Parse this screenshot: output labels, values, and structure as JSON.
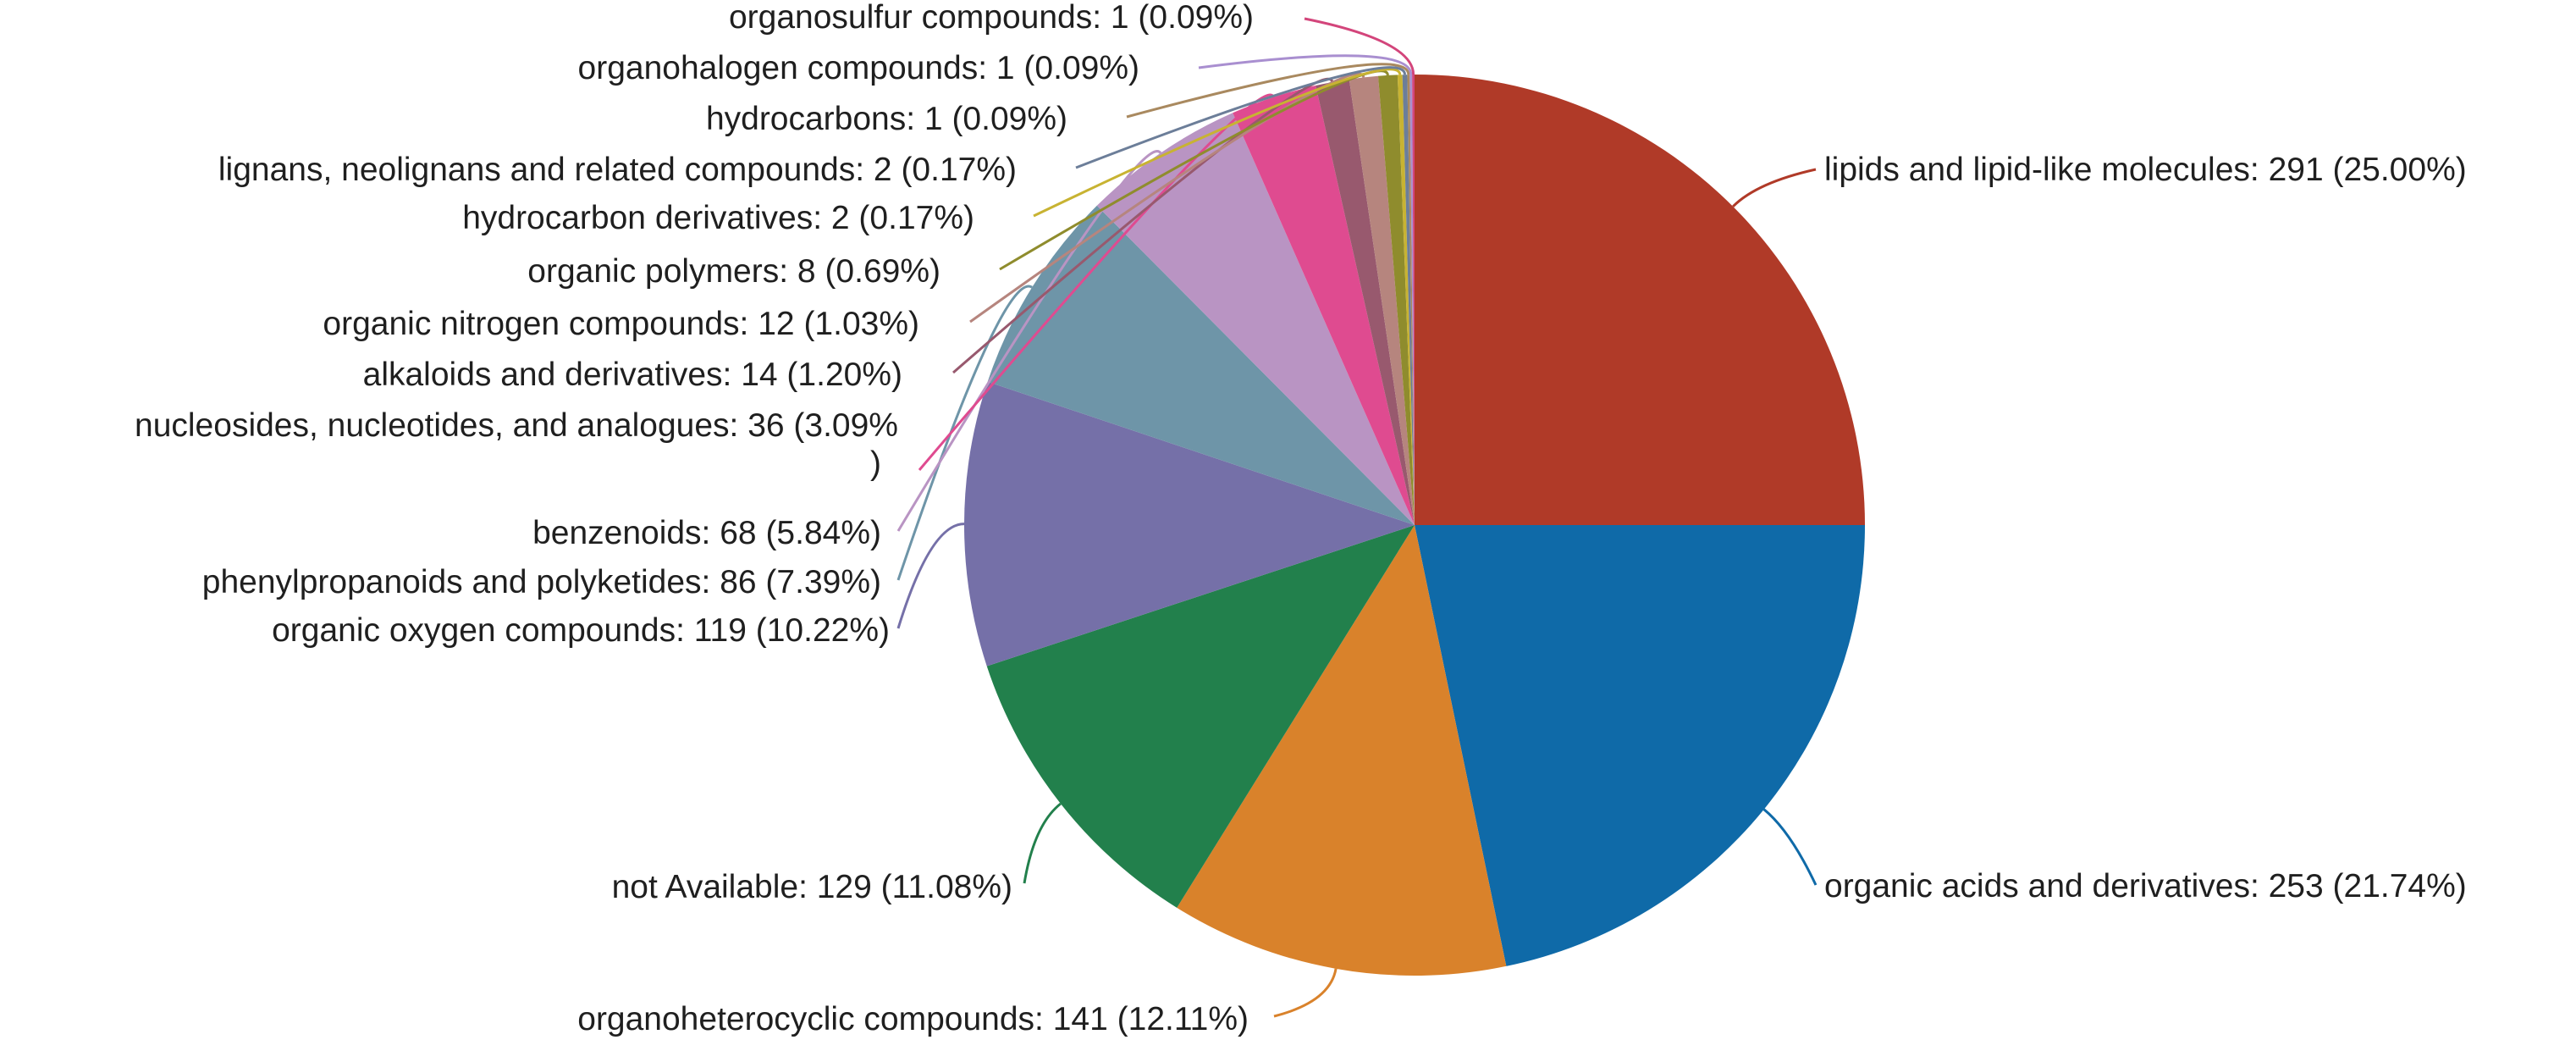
{
  "chart_data": {
    "type": "pie",
    "title": "",
    "start_angle_deg": 0,
    "direction": "clockwise",
    "slices": [
      {
        "name": "lipids and lipid-like molecules",
        "value": 291,
        "percent": "25.00%",
        "label": "lipids and lipid-like molecules: 291 (25.00%)",
        "color": "#b03a28"
      },
      {
        "name": "organic acids and derivatives",
        "value": 253,
        "percent": "21.74%",
        "label": "organic acids and derivatives: 253 (21.74%)",
        "color": "#0f6aa8"
      },
      {
        "name": "organoheterocyclic compounds",
        "value": 141,
        "percent": "12.11%",
        "label": "organoheterocyclic compounds: 141 (12.11%)",
        "color": "#d9822b"
      },
      {
        "name": "not Available",
        "value": 129,
        "percent": "11.08%",
        "label": "not Available: 129 (11.08%)",
        "color": "#22804c"
      },
      {
        "name": "organic oxygen compounds",
        "value": 119,
        "percent": "10.22%",
        "label": "organic oxygen compounds: 119 (10.22%)",
        "color": "#7570a8"
      },
      {
        "name": "phenylpropanoids and polyketides",
        "value": 86,
        "percent": "7.39%",
        "label": "phenylpropanoids and polyketides: 86 (7.39%)",
        "color": "#6e95a8"
      },
      {
        "name": "benzenoids",
        "value": 68,
        "percent": "5.84%",
        "label": "benzenoids: 68 (5.84%)",
        "color": "#b994c3"
      },
      {
        "name": "nucleosides, nucleotides, and analogues",
        "value": 36,
        "percent": "3.09%",
        "label_line1": "nucleosides, nucleotides, and analogues: 36 (3.09%",
        "label_line2": ")",
        "color": "#df4b90"
      },
      {
        "name": "alkaloids and derivatives",
        "value": 14,
        "percent": "1.20%",
        "label": "alkaloids and derivatives: 14 (1.20%)",
        "color": "#98596e"
      },
      {
        "name": "organic nitrogen compounds",
        "value": 12,
        "percent": "1.03%",
        "label": "organic nitrogen compounds: 12 (1.03%)",
        "color": "#b6857e"
      },
      {
        "name": "organic polymers",
        "value": 8,
        "percent": "0.69%",
        "label": "organic polymers: 8 (0.69%)",
        "color": "#8f8c2d"
      },
      {
        "name": "hydrocarbon derivatives",
        "value": 2,
        "percent": "0.17%",
        "label": "hydrocarbon derivatives: 2 (0.17%)",
        "color": "#c8b332"
      },
      {
        "name": "lignans, neolignans and related compounds",
        "value": 2,
        "percent": "0.17%",
        "label": "lignans, neolignans and related compounds: 2 (0.17%)",
        "color": "#6c7e99"
      },
      {
        "name": "hydrocarbons",
        "value": 1,
        "percent": "0.09%",
        "label": "hydrocarbons: 1 (0.09%)",
        "color": "#a9895f"
      },
      {
        "name": "organohalogen compounds",
        "value": 1,
        "percent": "0.09%",
        "label": "organohalogen compounds: 1 (0.09%)",
        "color": "#a98fd0"
      },
      {
        "name": "organosulfur compounds",
        "value": 1,
        "percent": "0.09%",
        "label": "organosulfur compounds: 1 (0.09%)",
        "color": "#d3457b"
      }
    ]
  }
}
